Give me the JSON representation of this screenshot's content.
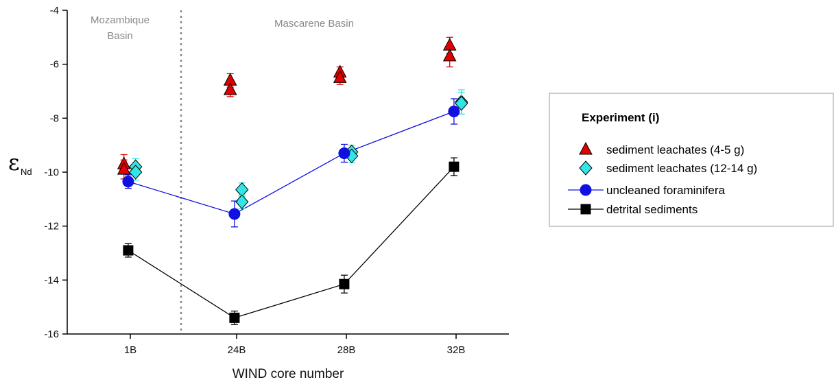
{
  "chart_data": {
    "type": "scatter",
    "xlabel": "WIND core number",
    "ylabel_main": "ε",
    "ylabel_sub": "Nd",
    "categories": [
      "1B",
      "24B",
      "28B",
      "32B"
    ],
    "ylim": [
      -16,
      -4
    ],
    "yticks": [
      -16,
      -14,
      -12,
      -10,
      -8,
      -6,
      -4
    ],
    "regions": [
      {
        "line1": "Mozambique",
        "line2": "Basin"
      },
      {
        "line1": "Mascarene Basin",
        "line2": ""
      }
    ],
    "legend": {
      "title": "Experiment (i)",
      "placement": "right"
    },
    "series": [
      {
        "name": "sediment leachates (4-5 g)",
        "marker": "triangle",
        "color": "#e00000",
        "connected": false,
        "points": [
          {
            "cat": 0,
            "offset": -0.06,
            "y": -9.7,
            "err": 0.35
          },
          {
            "cat": 0,
            "offset": -0.06,
            "y": -9.9,
            "err": 0.35
          },
          {
            "cat": 1,
            "offset": -0.06,
            "y": -6.6,
            "err": 0.25
          },
          {
            "cat": 1,
            "offset": -0.06,
            "y": -6.95,
            "err": 0.25
          },
          {
            "cat": 2,
            "offset": -0.06,
            "y": -6.3,
            "err": 0.2
          },
          {
            "cat": 2,
            "offset": -0.06,
            "y": -6.5,
            "err": 0.25
          },
          {
            "cat": 3,
            "offset": -0.06,
            "y": -5.3,
            "err": 0.3
          },
          {
            "cat": 3,
            "offset": -0.06,
            "y": -5.7,
            "err": 0.4
          }
        ]
      },
      {
        "name": "sediment leachates (12-14 g)",
        "marker": "diamond",
        "color": "#33e5e5",
        "connected": false,
        "points": [
          {
            "cat": 0,
            "offset": 0.05,
            "y": -9.8,
            "err": 0.3
          },
          {
            "cat": 0,
            "offset": 0.05,
            "y": -10.0,
            "err": 0.3
          },
          {
            "cat": 1,
            "offset": 0.05,
            "y": -10.65,
            "err": 0.25
          },
          {
            "cat": 1,
            "offset": 0.05,
            "y": -11.1,
            "err": 0.25
          },
          {
            "cat": 2,
            "offset": 0.05,
            "y": -9.25,
            "err": 0.25
          },
          {
            "cat": 2,
            "offset": 0.05,
            "y": -9.4,
            "err": 0.25
          },
          {
            "cat": 3,
            "offset": 0.05,
            "y": -7.4,
            "err": 0.45
          },
          {
            "cat": 3,
            "offset": 0.05,
            "y": -7.45,
            "err": 0.4
          }
        ]
      },
      {
        "name": "uncleaned foraminifera",
        "marker": "circle",
        "color": "#1010e0",
        "connected": true,
        "points": [
          {
            "cat": 0,
            "offset": -0.02,
            "y": -10.35,
            "err": 0.25
          },
          {
            "cat": 1,
            "offset": -0.02,
            "y": -11.55,
            "err": 0.48
          },
          {
            "cat": 2,
            "offset": -0.02,
            "y": -9.3,
            "err": 0.33
          },
          {
            "cat": 3,
            "offset": -0.02,
            "y": -7.75,
            "err": 0.47
          }
        ]
      },
      {
        "name": "detrital sediments",
        "marker": "square",
        "color": "#000000",
        "connected": true,
        "points": [
          {
            "cat": 0,
            "offset": -0.02,
            "y": -12.9,
            "err": 0.25
          },
          {
            "cat": 1,
            "offset": -0.02,
            "y": -15.4,
            "err": 0.25
          },
          {
            "cat": 2,
            "offset": -0.02,
            "y": -14.15,
            "err": 0.33
          },
          {
            "cat": 3,
            "offset": -0.02,
            "y": -9.8,
            "err": 0.33
          }
        ]
      }
    ]
  }
}
